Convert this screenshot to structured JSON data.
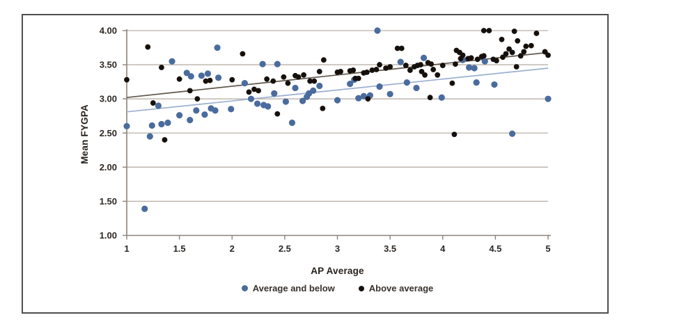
{
  "figure": {
    "frame_border_color": "#4f4f4f",
    "background": "#ffffff"
  },
  "chart_data": {
    "type": "scatter",
    "title": "",
    "xlabel": "AP Average",
    "ylabel": "Mean FYGPA",
    "xlim": [
      1,
      5
    ],
    "ylim": [
      1,
      4
    ],
    "x_ticks": [
      1,
      1.5,
      2,
      2.5,
      3,
      3.5,
      4,
      4.5,
      5
    ],
    "x_tick_labels": [
      "1",
      "1.5",
      "2",
      "2.5",
      "3",
      "3.5",
      "4",
      "4.5",
      "5"
    ],
    "y_ticks": [
      1,
      1.5,
      2,
      2.5,
      3,
      3.5,
      4
    ],
    "y_tick_labels": [
      "1.00",
      "1.50",
      "2.00",
      "2.50",
      "3.00",
      "3.50",
      "4.00"
    ],
    "grid": "horizontal-only",
    "legend_position": "bottom-center",
    "colors": {
      "grid": "#b9b0a8",
      "axis": "#8b8279",
      "tick_text": "#2c2722",
      "legend_text": "#37312b"
    },
    "series": [
      {
        "name": "Average and below",
        "color": "#4a6b9e",
        "marker_radius": 4.6,
        "points": [
          [
            1.0,
            2.6
          ],
          [
            1.17,
            1.39
          ],
          [
            1.22,
            2.45
          ],
          [
            1.24,
            2.61
          ],
          [
            1.3,
            2.9
          ],
          [
            1.33,
            2.63
          ],
          [
            1.39,
            2.65
          ],
          [
            1.43,
            3.55
          ],
          [
            1.5,
            2.76
          ],
          [
            1.57,
            3.38
          ],
          [
            1.61,
            3.33
          ],
          [
            1.6,
            2.69
          ],
          [
            1.66,
            2.83
          ],
          [
            1.71,
            3.34
          ],
          [
            1.74,
            2.77
          ],
          [
            1.77,
            3.37
          ],
          [
            1.8,
            2.86
          ],
          [
            1.84,
            2.83
          ],
          [
            1.86,
            3.75
          ],
          [
            1.87,
            3.31
          ],
          [
            1.99,
            2.85
          ],
          [
            2.12,
            3.23
          ],
          [
            2.18,
            3.0
          ],
          [
            2.24,
            2.93
          ],
          [
            2.29,
            3.51
          ],
          [
            2.3,
            2.91
          ],
          [
            2.34,
            2.89
          ],
          [
            2.4,
            3.08
          ],
          [
            2.43,
            3.51
          ],
          [
            2.51,
            2.96
          ],
          [
            2.57,
            2.65
          ],
          [
            2.6,
            3.16
          ],
          [
            2.67,
            2.97
          ],
          [
            2.71,
            3.03
          ],
          [
            2.73,
            3.08
          ],
          [
            2.77,
            3.12
          ],
          [
            2.83,
            3.19
          ],
          [
            3.0,
            2.98
          ],
          [
            3.12,
            3.22
          ],
          [
            3.16,
            3.28
          ],
          [
            3.2,
            3.01
          ],
          [
            3.25,
            3.04
          ],
          [
            3.31,
            3.05
          ],
          [
            3.38,
            4.0
          ],
          [
            3.4,
            3.18
          ],
          [
            3.5,
            3.07
          ],
          [
            3.6,
            3.54
          ],
          [
            3.66,
            3.24
          ],
          [
            3.75,
            3.16
          ],
          [
            3.82,
            3.6
          ],
          [
            3.99,
            3.02
          ],
          [
            4.19,
            3.57
          ],
          [
            4.25,
            3.46
          ],
          [
            4.3,
            3.45
          ],
          [
            4.32,
            3.24
          ],
          [
            4.4,
            3.55
          ],
          [
            4.49,
            3.21
          ],
          [
            4.66,
            2.49
          ],
          [
            5.0,
            3.0
          ]
        ],
        "trend_line": {
          "color": "#9cafd0",
          "from": [
            1,
            2.81
          ],
          "to": [
            5,
            3.45
          ]
        }
      },
      {
        "name": "Above average",
        "color": "#16100c",
        "marker_radius": 3.9,
        "points": [
          [
            1.0,
            3.28
          ],
          [
            1.2,
            3.76
          ],
          [
            1.25,
            2.94
          ],
          [
            1.33,
            3.46
          ],
          [
            1.36,
            2.4
          ],
          [
            1.5,
            3.29
          ],
          [
            1.6,
            3.12
          ],
          [
            1.67,
            3.0
          ],
          [
            1.75,
            3.26
          ],
          [
            1.79,
            3.27
          ],
          [
            2.0,
            3.28
          ],
          [
            2.1,
            3.66
          ],
          [
            2.16,
            3.1
          ],
          [
            2.21,
            3.14
          ],
          [
            2.25,
            3.12
          ],
          [
            2.33,
            3.29
          ],
          [
            2.39,
            3.26
          ],
          [
            2.43,
            2.78
          ],
          [
            2.49,
            3.32
          ],
          [
            2.53,
            3.23
          ],
          [
            2.6,
            3.34
          ],
          [
            2.63,
            3.32
          ],
          [
            2.68,
            3.35
          ],
          [
            2.74,
            3.26
          ],
          [
            2.78,
            3.26
          ],
          [
            2.83,
            3.4
          ],
          [
            2.86,
            2.86
          ],
          [
            2.87,
            3.57
          ],
          [
            3.0,
            3.39
          ],
          [
            3.03,
            3.4
          ],
          [
            3.12,
            3.41
          ],
          [
            3.15,
            3.42
          ],
          [
            3.17,
            3.3
          ],
          [
            3.2,
            3.3
          ],
          [
            3.25,
            3.38
          ],
          [
            3.28,
            3.39
          ],
          [
            3.29,
            3.0
          ],
          [
            3.33,
            3.42
          ],
          [
            3.37,
            3.43
          ],
          [
            3.4,
            3.5
          ],
          [
            3.46,
            3.45
          ],
          [
            3.5,
            3.47
          ],
          [
            3.57,
            3.74
          ],
          [
            3.61,
            3.74
          ],
          [
            3.65,
            3.49
          ],
          [
            3.69,
            3.42
          ],
          [
            3.73,
            3.47
          ],
          [
            3.76,
            3.49
          ],
          [
            3.79,
            3.5
          ],
          [
            3.8,
            3.4
          ],
          [
            3.83,
            3.35
          ],
          [
            3.86,
            3.53
          ],
          [
            3.89,
            3.51
          ],
          [
            3.88,
            3.02
          ],
          [
            3.91,
            3.43
          ],
          [
            3.95,
            3.35
          ],
          [
            4.0,
            3.49
          ],
          [
            4.09,
            3.23
          ],
          [
            4.11,
            2.48
          ],
          [
            4.12,
            3.51
          ],
          [
            4.13,
            3.71
          ],
          [
            4.16,
            3.68
          ],
          [
            4.17,
            3.59
          ],
          [
            4.19,
            3.64
          ],
          [
            4.24,
            3.59
          ],
          [
            4.27,
            3.6
          ],
          [
            4.33,
            3.58
          ],
          [
            4.37,
            3.62
          ],
          [
            4.39,
            3.63
          ],
          [
            4.39,
            4.0
          ],
          [
            4.44,
            4.0
          ],
          [
            4.48,
            3.58
          ],
          [
            4.51,
            3.56
          ],
          [
            4.56,
            3.87
          ],
          [
            4.57,
            3.61
          ],
          [
            4.6,
            3.66
          ],
          [
            4.63,
            3.73
          ],
          [
            4.66,
            3.68
          ],
          [
            4.68,
            3.99
          ],
          [
            4.7,
            3.47
          ],
          [
            4.71,
            3.85
          ],
          [
            4.74,
            3.63
          ],
          [
            4.77,
            3.69
          ],
          [
            4.79,
            3.77
          ],
          [
            4.84,
            3.78
          ],
          [
            4.89,
            3.96
          ],
          [
            4.97,
            3.69
          ],
          [
            5.0,
            3.64
          ]
        ],
        "trend_line": {
          "color": "#60564b",
          "from": [
            1,
            3.02
          ],
          "to": [
            5,
            3.68
          ]
        }
      }
    ]
  }
}
